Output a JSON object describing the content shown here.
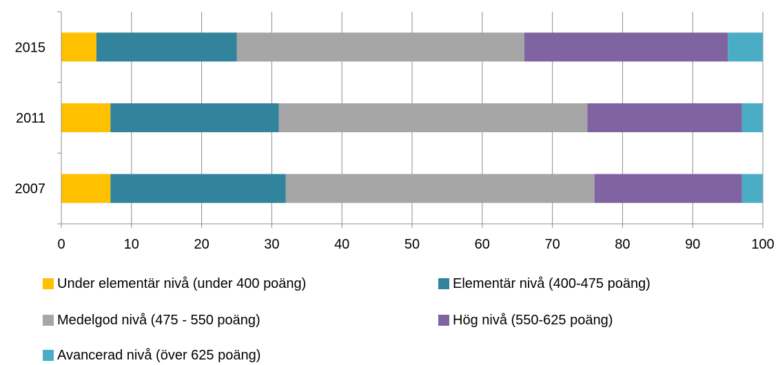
{
  "chart_data": {
    "type": "bar",
    "orientation": "horizontal",
    "stacked": true,
    "title": "",
    "xlabel": "",
    "ylabel": "",
    "categories": [
      "2015",
      "2011",
      "2007"
    ],
    "xlim": [
      0,
      100
    ],
    "x_ticks": [
      0,
      10,
      20,
      30,
      40,
      50,
      60,
      70,
      80,
      90,
      100
    ],
    "grid": true,
    "legend_position": "bottom",
    "series": [
      {
        "name": "Under elementär nivå (under 400 poäng)",
        "color": "#FFC000",
        "values": [
          5,
          7,
          7
        ]
      },
      {
        "name": "Elementär nivå (400-475 poäng)",
        "color": "#31849B",
        "values": [
          20,
          24,
          25
        ]
      },
      {
        "name": "Medelgod nivå (475 - 550 poäng)",
        "color": "#A6A6A6",
        "values": [
          41,
          44,
          44
        ]
      },
      {
        "name": "Hög nivå (550-625 poäng)",
        "color": "#8064A2",
        "values": [
          29,
          22,
          21
        ]
      },
      {
        "name": "Avancerad nivå (över 625 poäng)",
        "color": "#4BACC6",
        "values": [
          5,
          3,
          3
        ]
      }
    ]
  }
}
